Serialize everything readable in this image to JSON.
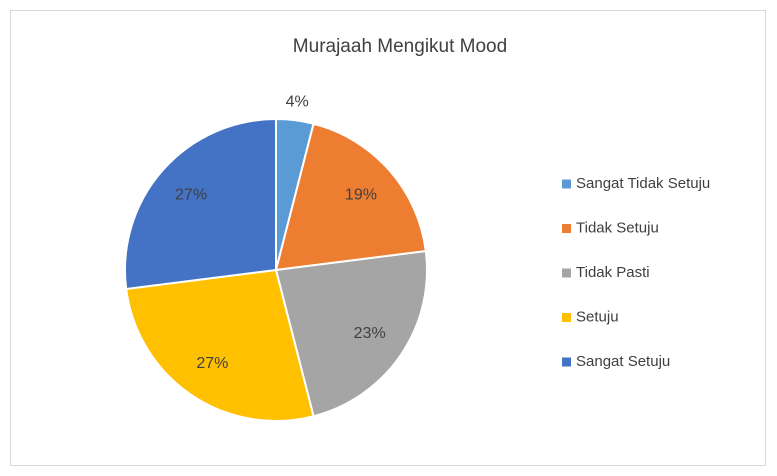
{
  "chart_data": {
    "type": "pie",
    "title": "Murajaah Mengikut Mood",
    "categories": [
      "Sangat Tidak Setuju",
      "Tidak Setuju",
      "Tidak Pasti",
      "Setuju",
      "Sangat Setuju"
    ],
    "values": [
      4,
      19,
      23,
      27,
      27
    ],
    "value_labels": [
      "4%",
      "19%",
      "23%",
      "27%",
      "27%"
    ],
    "colors": [
      "#5b9bd5",
      "#ed7d31",
      "#a5a5a5",
      "#ffc000",
      "#4472c4"
    ],
    "legend": "right"
  }
}
